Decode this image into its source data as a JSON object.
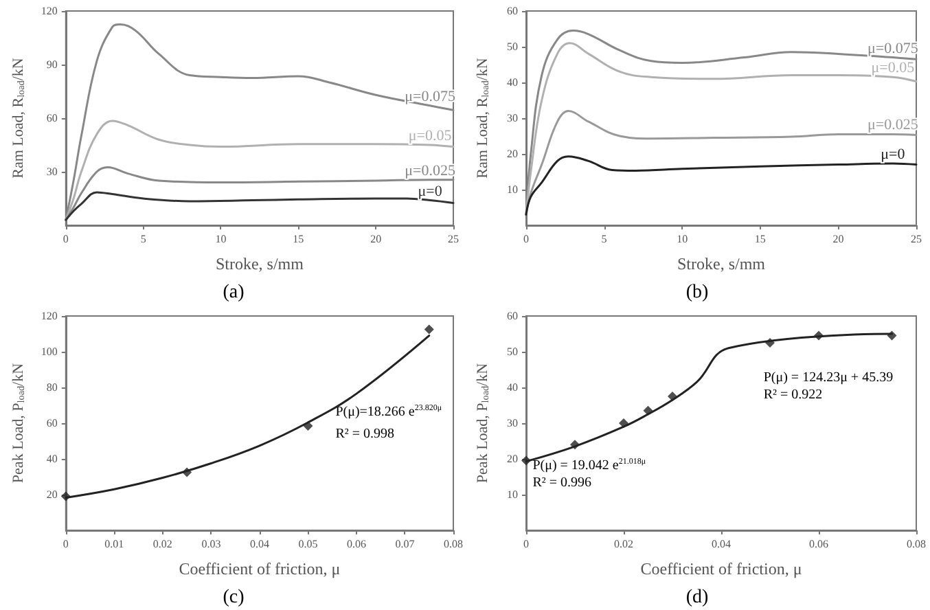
{
  "chart_data": [
    {
      "type": "line",
      "xlabel": "Stroke, s/mm",
      "ylabel": "Ram Load, R$_{load}$/kN",
      "xlim": [
        0,
        25
      ],
      "xticks": [
        0,
        5,
        10,
        15,
        20,
        25
      ],
      "ylim": [
        0,
        120
      ],
      "yticks": [
        30,
        60,
        90,
        120
      ],
      "grid": false,
      "legend": false,
      "annotations": [
        "(a)"
      ],
      "series": [
        {
          "name": "μ=0.075",
          "color": "#888888",
          "x": [
            0,
            0.5,
            1,
            2,
            3,
            3.5,
            4.5,
            6,
            8,
            10,
            12,
            15,
            17,
            20,
            23.5,
            25
          ],
          "values": [
            3,
            25,
            50,
            92,
            111,
            112.5,
            109,
            96,
            84,
            83,
            82.5,
            83.5,
            80,
            73,
            67,
            64.5
          ]
        },
        {
          "name": "μ=0.05",
          "color": "#b0b0b0",
          "x": [
            0,
            0.5,
            1,
            2,
            3,
            4,
            6,
            8,
            10,
            15,
            20,
            23.5,
            25
          ],
          "values": [
            3,
            15,
            30,
            51,
            58.5,
            56,
            48,
            45,
            44,
            45.5,
            45.5,
            45,
            44
          ]
        },
        {
          "name": "μ=0.025",
          "color": "#888888",
          "x": [
            0,
            0.5,
            1,
            2,
            2.7,
            4,
            6,
            10,
            15,
            20,
            23.5,
            25
          ],
          "values": [
            3,
            10,
            18,
            30,
            32.5,
            29,
            25,
            24,
            24.5,
            25,
            25.5,
            25.5
          ]
        },
        {
          "name": "μ=0",
          "color": "#333333",
          "x": [
            0,
            0.5,
            1,
            2,
            3,
            5,
            8,
            12,
            15,
            20,
            22,
            23.5,
            25
          ],
          "values": [
            3,
            8,
            12,
            18.5,
            17.5,
            15,
            13.5,
            14,
            14.5,
            15,
            15,
            14,
            12.5
          ]
        }
      ]
    },
    {
      "type": "line",
      "xlabel": "Stroke, s/mm",
      "ylabel": "Ram Load, R$_{load}$/kN",
      "xlim": [
        0,
        25
      ],
      "xticks": [
        0,
        5,
        10,
        15,
        20,
        25
      ],
      "ylim": [
        0,
        60
      ],
      "yticks": [
        10,
        20,
        30,
        40,
        50,
        60
      ],
      "grid": false,
      "legend": false,
      "annotations": [
        "(b)"
      ],
      "series": [
        {
          "name": "μ=0.075",
          "color": "#888888",
          "x": [
            0,
            0.3,
            1,
            2,
            3,
            4,
            6,
            8,
            10,
            14,
            17,
            20,
            23.5,
            25
          ],
          "values": [
            3,
            20,
            42,
            52,
            54.5,
            53.5,
            49,
            46,
            45.5,
            47,
            48.5,
            48,
            47,
            46.5
          ]
        },
        {
          "name": "μ=0.05",
          "color": "#b0b0b0",
          "x": [
            0,
            0.3,
            1,
            2,
            2.8,
            4,
            6,
            8,
            12,
            17,
            20,
            23.5,
            25
          ],
          "values": [
            3,
            15,
            35,
            48,
            51,
            48,
            43,
            41.5,
            41,
            42,
            42,
            41.5,
            40.3
          ]
        },
        {
          "name": "μ=0.025",
          "color": "#999999",
          "x": [
            0,
            0.3,
            1,
            2,
            2.7,
            4,
            6,
            8,
            12,
            17,
            20,
            23.5,
            25
          ],
          "values": [
            3,
            9,
            17,
            29,
            32,
            29,
            25,
            24.3,
            24.5,
            24.8,
            25.5,
            25.5,
            25.3
          ]
        },
        {
          "name": "μ=0",
          "color": "#222222",
          "x": [
            0,
            0.3,
            1,
            2,
            2.7,
            4,
            5.5,
            7,
            10,
            15,
            20,
            23.5,
            25
          ],
          "values": [
            3,
            8,
            12,
            18,
            19.3,
            18,
            15.5,
            15.3,
            15.8,
            16.5,
            17,
            17.3,
            17
          ]
        }
      ]
    },
    {
      "type": "scatter",
      "xlabel": "Coefficient of friction, μ",
      "ylabel": "Peak Load, P$_{load}$/kN",
      "xlim": [
        0,
        0.08
      ],
      "xticks": [
        0,
        0.01,
        0.02,
        0.03,
        0.04,
        0.05,
        0.06,
        0.07,
        0.08
      ],
      "ylim": [
        0,
        120
      ],
      "yticks": [
        20,
        40,
        60,
        80,
        100,
        120
      ],
      "grid": false,
      "legend": false,
      "marker": "diamond",
      "annotations": [
        "(c)",
        "P(μ)=18.266 e$^{23.820μ}$",
        "R² = 0.998"
      ],
      "series": [
        {
          "color": "#222222",
          "x": [
            0,
            0.025,
            0.05,
            0.075
          ],
          "values": [
            19,
            32.5,
            58.5,
            112.5
          ]
        },
        {
          "type": "line",
          "marker": "none",
          "color": "#222222",
          "x": [
            0,
            0.01,
            0.02,
            0.03,
            0.04,
            0.05,
            0.06,
            0.075
          ],
          "values": [
            18.3,
            23,
            29.4,
            37.5,
            47.4,
            60.4,
            76.5,
            109
          ]
        }
      ]
    },
    {
      "type": "scatter",
      "xlabel": "Coefficient of friction, μ",
      "ylabel": "Peak Load, P$_{load}$/kN",
      "xlim": [
        0,
        0.08
      ],
      "xticks": [
        0,
        0.02,
        0.04,
        0.06,
        0.08
      ],
      "ylim": [
        0,
        60
      ],
      "yticks": [
        10,
        20,
        30,
        40,
        50,
        60
      ],
      "grid": false,
      "legend": false,
      "marker": "diamond",
      "annotations": [
        "(d)",
        "P(μ) = 124.23μ + 45.39",
        "R² = 0.922",
        "P(μ) = 19.042 e$^{21.018μ}$",
        "R² = 0.996"
      ],
      "series": [
        {
          "color": "#222222",
          "x": [
            0,
            0.01,
            0.02,
            0.025,
            0.03,
            0.05,
            0.06,
            0.075
          ],
          "values": [
            19.5,
            24,
            30,
            33.5,
            37.5,
            52.5,
            54.5,
            54.5
          ]
        },
        {
          "type": "line",
          "marker": "none",
          "color": "#222222",
          "x": [
            0,
            0.01,
            0.02,
            0.025,
            0.03,
            0.035,
            0.0415,
            0.075
          ],
          "values": [
            19.3,
            23.5,
            29,
            32.5,
            36.5,
            41.5,
            51,
            55
          ]
        }
      ]
    }
  ]
}
